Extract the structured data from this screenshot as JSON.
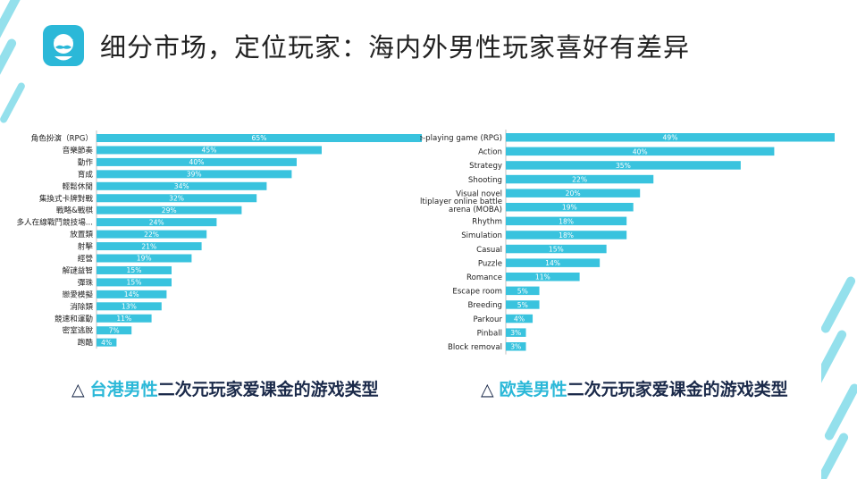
{
  "page": {
    "title": "细分市场，定位玩家：海内外男性玩家喜好有差异"
  },
  "colors": {
    "bar": "#39c3de",
    "accent": "#2bb8d8",
    "caption_text": "#1b2a4a"
  },
  "captions": [
    {
      "triangle": "△",
      "highlight": "台港男性",
      "rest": "二次元玩家爱课金的游戏类型"
    },
    {
      "triangle": "△",
      "highlight": "欧美男性",
      "rest": "二次元玩家爱课金的游戏类型"
    }
  ],
  "chart_data": [
    {
      "type": "bar",
      "orientation": "horizontal",
      "categories": [
        "角色扮演（RPG）",
        "音樂節奏",
        "動作",
        "育成",
        "輕鬆休閒",
        "集換式卡牌對戰",
        "戰略&戰棋",
        "多人在線戰鬥競技場...",
        "放置類",
        "射擊",
        "經營",
        "解謎益智",
        "彈珠",
        "戀愛模擬",
        "消除類",
        "競速和運動",
        "密室逃脫",
        "跑酷"
      ],
      "values": [
        65,
        45,
        40,
        39,
        34,
        32,
        29,
        24,
        22,
        21,
        19,
        15,
        15,
        14,
        13,
        11,
        7,
        4
      ],
      "value_labels": [
        "65%",
        "45%",
        "40%",
        "39%",
        "34%",
        "32%",
        "29%",
        "24%",
        "22%",
        "21%",
        "19%",
        "15%",
        "15%",
        "14%",
        "13%",
        "11%",
        "7%",
        "4%"
      ],
      "xlim": [
        0,
        65
      ]
    },
    {
      "type": "bar",
      "orientation": "horizontal",
      "categories": [
        "Role-playing game (RPG)",
        "Action",
        "Strategy",
        "Shooting",
        "Visual novel",
        "Multiplayer online battle arena (MOBA)",
        "Rhythm",
        "Simulation",
        "Casual",
        "Puzzle",
        "Romance",
        "Escape room",
        "Breeding",
        "Parkour",
        "Pinball",
        "Block removal"
      ],
      "values": [
        49,
        40,
        35,
        22,
        20,
        19,
        18,
        18,
        15,
        14,
        11,
        5,
        5,
        4,
        3,
        3
      ],
      "value_labels": [
        "49%",
        "40%",
        "35%",
        "22%",
        "20%",
        "19%",
        "18%",
        "18%",
        "15%",
        "14%",
        "11%",
        "5%",
        "5%",
        "4%",
        "3%",
        "3%"
      ],
      "xlim": [
        0,
        49
      ]
    }
  ]
}
